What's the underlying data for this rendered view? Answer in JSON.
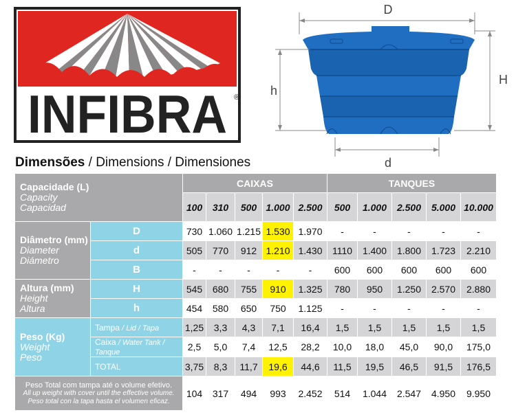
{
  "brand": {
    "name": "INFIBRA",
    "registered": "®",
    "red": "#e02620",
    "dark": "#222222"
  },
  "diagram": {
    "label_D": "D",
    "label_H": "H",
    "label_h": "h",
    "label_d": "d",
    "tank_color": "#1f6ec1"
  },
  "heading": {
    "pt": "Dimensões",
    "rest": " / Dimensions / Dimensiones"
  },
  "table": {
    "group_caixas": "CAIXAS",
    "group_tanques": "TANQUES",
    "capacity_label": "Capacidade (L)",
    "capacity_en": "Capacity",
    "capacity_es": "Capacidad",
    "capacities": [
      "100",
      "310",
      "500",
      "1.000",
      "2.500",
      "500",
      "1.000",
      "2.500",
      "5.000",
      "10.000"
    ],
    "diameter_label": "Diâmetro (mm)",
    "diameter_en": "Diameter",
    "diameter_es": "Diámetro",
    "height_label": "Altura (mm)",
    "height_en": "Height",
    "height_es": "Altura",
    "weight_label": "Peso (Kg)",
    "weight_en": "Weight",
    "weight_es": "Peso",
    "row_D": {
      "key": "D",
      "values": [
        "730",
        "1.060",
        "1.215",
        "1.530",
        "1.970",
        "-",
        "-",
        "-",
        "-",
        "-"
      ]
    },
    "row_d": {
      "key": "d",
      "values": [
        "505",
        "770",
        "912",
        "1.210",
        "1.430",
        "1110",
        "1.400",
        "1.800",
        "1.723",
        "2.210"
      ]
    },
    "row_B": {
      "key": "B",
      "values": [
        "-",
        "-",
        "-",
        "-",
        "-",
        "600",
        "600",
        "600",
        "600",
        "600"
      ]
    },
    "row_H": {
      "key": "H",
      "values": [
        "545",
        "680",
        "755",
        "910",
        "1.325",
        "780",
        "950",
        "1.250",
        "2.570",
        "2.880"
      ]
    },
    "row_h": {
      "key": "h",
      "values": [
        "454",
        "580",
        "650",
        "750",
        "1.125",
        "-",
        "-",
        "-",
        "-",
        "-"
      ]
    },
    "row_tampa": {
      "key_pt": "Tampa",
      "key_rest": " / Lid / Tapa",
      "values": [
        "1,25",
        "3,3",
        "4,3",
        "7,1",
        "16,4",
        "1,5",
        "1,5",
        "1,5",
        "1,5",
        "1,5"
      ]
    },
    "row_caixa": {
      "key_pt": "Caixa",
      "key_rest": " / Water Tank / Tanque",
      "values": [
        "2,5",
        "5,0",
        "7,4",
        "12,5",
        "28,2",
        "10,0",
        "18,0",
        "45,0",
        "90,0",
        "175,0"
      ]
    },
    "row_total": {
      "key": "TOTAL",
      "values": [
        "3,75",
        "8,3",
        "11,7",
        "19,6",
        "44,6",
        "11,5",
        "19,5",
        "46,5",
        "91,5",
        "176,5"
      ]
    },
    "footer_pt": "Peso Total com tampa até o volume efetivo.",
    "footer_en": "All up weight with cover until the effective volume.",
    "footer_es": "Peso total con la tapa hasta el volumen eficaz.",
    "row_footer": {
      "values": [
        "104",
        "317",
        "494",
        "993",
        "2.452",
        "514",
        "1.044",
        "2.547",
        "4.950",
        "9.950"
      ]
    },
    "highlight_color": "#fff200"
  }
}
